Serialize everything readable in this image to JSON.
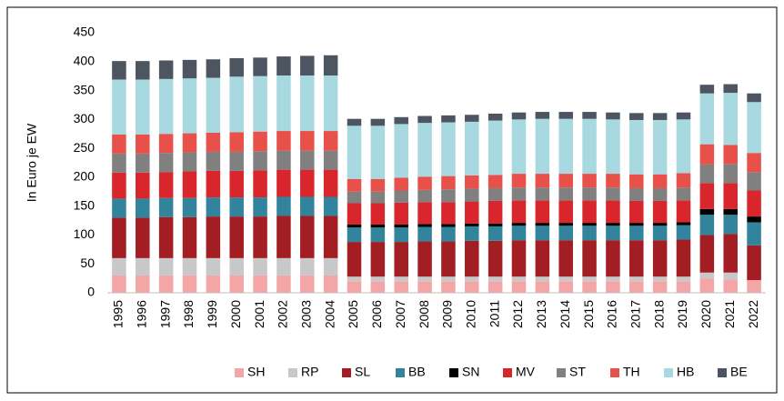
{
  "chart_data": {
    "type": "stacked_bar",
    "y_label": "In Euro je EW",
    "categories": [
      "1995",
      "1996",
      "1997",
      "1998",
      "1999",
      "2000",
      "2001",
      "2002",
      "2003",
      "2004",
      "2005",
      "2006",
      "2007",
      "2008",
      "2009",
      "2010",
      "2011",
      "2012",
      "2013",
      "2014",
      "2015",
      "2016",
      "2017",
      "2018",
      "2019",
      "2020",
      "2021",
      "2022"
    ],
    "ylim": [
      0,
      450
    ],
    "yticks": [
      0,
      50,
      100,
      150,
      200,
      250,
      300,
      350,
      400,
      450
    ],
    "grid": false,
    "legend": "bottom",
    "series": [
      {
        "name": "SH",
        "color": "#f4a6a6",
        "values": [
          30,
          30,
          30,
          30,
          30,
          30,
          30,
          30,
          30,
          30,
          20,
          20,
          20,
          20,
          20,
          20,
          20,
          20,
          20,
          20,
          20,
          20,
          20,
          20,
          20,
          25,
          23,
          22
        ]
      },
      {
        "name": "RP",
        "color": "#c8c8c8",
        "values": [
          30,
          30,
          30,
          30,
          30,
          30,
          30,
          30,
          30,
          30,
          8,
          8,
          8,
          8,
          8,
          8,
          8,
          8,
          8,
          8,
          8,
          8,
          8,
          8,
          8,
          10,
          12,
          0
        ]
      },
      {
        "name": "SL",
        "color": "#a31e22",
        "values": [
          70,
          70,
          71,
          71,
          72,
          72,
          72,
          73,
          73,
          73,
          60,
          60,
          60,
          61,
          61,
          62,
          62,
          63,
          63,
          63,
          63,
          63,
          63,
          63,
          64,
          65,
          67,
          60
        ]
      },
      {
        "name": "BB",
        "color": "#31849b",
        "values": [
          33,
          33,
          33,
          33,
          33,
          33,
          33,
          33,
          33,
          33,
          25,
          25,
          25,
          25,
          25,
          25,
          25,
          25,
          25,
          25,
          25,
          25,
          25,
          25,
          25,
          35,
          33,
          40
        ]
      },
      {
        "name": "SN",
        "color": "#000000",
        "values": [
          0,
          0,
          0,
          0,
          0,
          0,
          0,
          0,
          0,
          0,
          5,
          5,
          5,
          5,
          5,
          5,
          5,
          5,
          5,
          5,
          5,
          5,
          5,
          5,
          5,
          10,
          10,
          10
        ]
      },
      {
        "name": "MV",
        "color": "#d9262c",
        "values": [
          45,
          45,
          45,
          46,
          46,
          46,
          47,
          47,
          47,
          47,
          37,
          37,
          38,
          38,
          38,
          38,
          39,
          39,
          39,
          39,
          39,
          39,
          38,
          38,
          38,
          45,
          45,
          45
        ]
      },
      {
        "name": "ST",
        "color": "#808080",
        "values": [
          33,
          33,
          33,
          33,
          33,
          33,
          33,
          33,
          33,
          33,
          20,
          20,
          21,
          21,
          22,
          22,
          22,
          22,
          22,
          22,
          22,
          22,
          22,
          22,
          22,
          32,
          33,
          32
        ]
      },
      {
        "name": "TH",
        "color": "#e8504a",
        "values": [
          33,
          33,
          33,
          33,
          33,
          34,
          34,
          34,
          34,
          34,
          22,
          22,
          22,
          23,
          23,
          23,
          23,
          24,
          24,
          24,
          24,
          24,
          24,
          24,
          25,
          35,
          33,
          33
        ]
      },
      {
        "name": "HB",
        "color": "#a8d8e0",
        "values": [
          95,
          95,
          95,
          95,
          95,
          96,
          96,
          96,
          96,
          96,
          92,
          92,
          93,
          93,
          93,
          93,
          94,
          94,
          95,
          95,
          95,
          94,
          94,
          94,
          93,
          88,
          90,
          88
        ]
      },
      {
        "name": "BE",
        "color": "#4d5560",
        "values": [
          32,
          32,
          32,
          32,
          32,
          32,
          32,
          33,
          34,
          35,
          12,
          12,
          12,
          12,
          12,
          12,
          12,
          12,
          12,
          12,
          12,
          12,
          12,
          12,
          12,
          15,
          15,
          15
        ]
      }
    ]
  }
}
